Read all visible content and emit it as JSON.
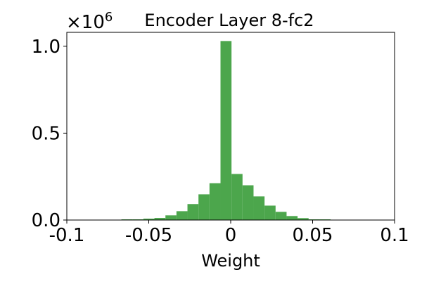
{
  "chart_data": {
    "type": "bar",
    "title": "Encoder Layer 8-fc2",
    "xlabel": "Weight",
    "ylabel": "",
    "y_scale_label": "×10",
    "y_scale_exponent": "6",
    "xlim": [
      -0.1,
      0.1
    ],
    "ylim": [
      0,
      1.08
    ],
    "xticks": [
      "-0.1",
      "-0.05",
      "0",
      "0.05",
      "0.1"
    ],
    "xtick_values": [
      -0.1,
      -0.05,
      0,
      0.05,
      0.1
    ],
    "yticks": [
      "0.0",
      "0.5",
      "1.0"
    ],
    "ytick_values": [
      0,
      0.5,
      1.0
    ],
    "bin_start": -0.0667,
    "bin_width": 0.00672,
    "values": [
      0.004,
      0.004,
      0.008,
      0.012,
      0.027,
      0.051,
      0.092,
      0.148,
      0.212,
      1.03,
      0.265,
      0.2,
      0.136,
      0.083,
      0.047,
      0.023,
      0.011,
      0.004,
      0.004
    ],
    "color": "#4ca64c",
    "grid": false
  }
}
